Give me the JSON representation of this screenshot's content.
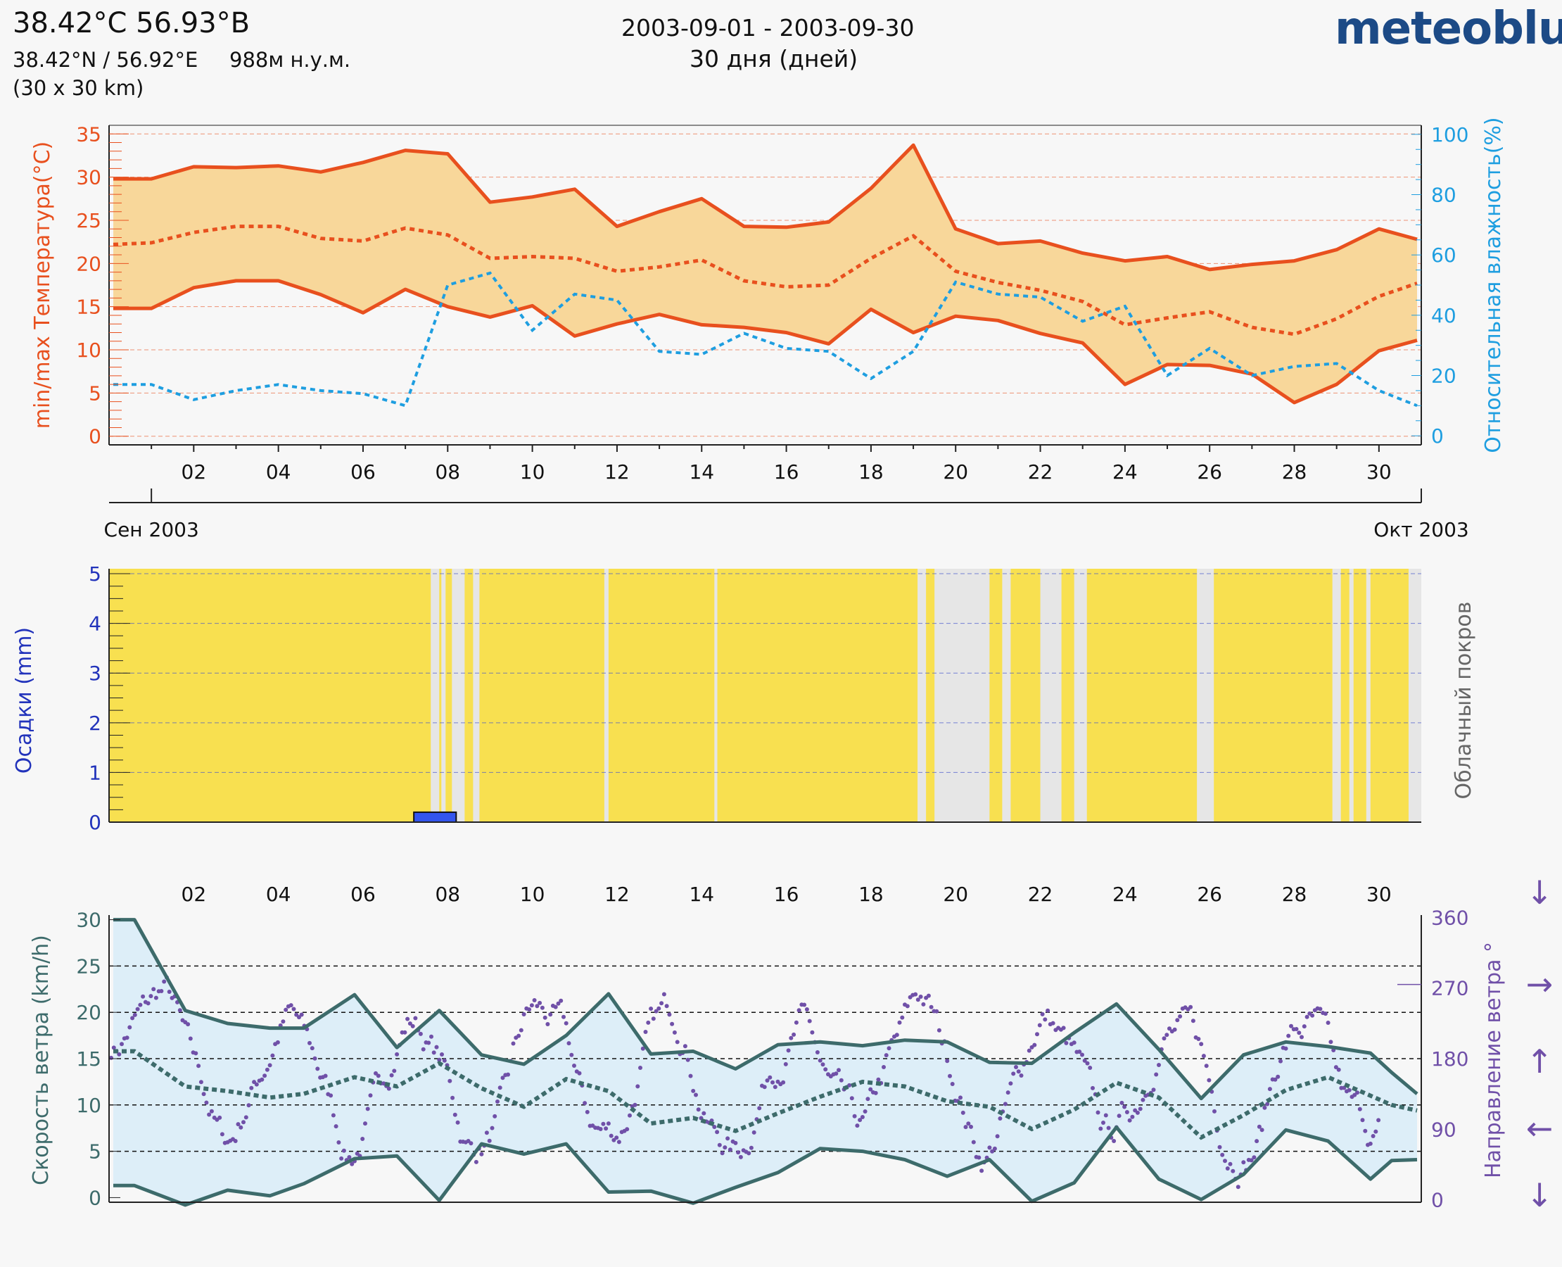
{
  "header": {
    "coords": "38.42°С 56.93°В",
    "subcoords": "38.42°N / 56.92°E",
    "elevation": "988м н.у.м.",
    "grid": "(30 x 30 km)",
    "date_range": "2003-09-01 - 2003-09-30",
    "days": "30 дня (дней)",
    "brand": "meteoblue"
  },
  "colors": {
    "temp": "#e8501e",
    "temp_fill": "#f8d79a",
    "humidity": "#1e9ee0",
    "precip": "#2233bb",
    "precip_bar": "#3355ee",
    "sun": "#f8e050",
    "cloud": "#e6e6e6",
    "wind": "#3d6b6b",
    "wind_fill": "#ddeef8",
    "direction": "#7050a8"
  },
  "chart_data": [
    {
      "type": "line",
      "name": "temperature-humidity",
      "ylabel": "min/max Температура(°C)",
      "y2label": "Относительная влажность(%)",
      "ylim": [
        -1,
        36
      ],
      "y2lim": [
        -3,
        103
      ],
      "xlim": [
        0,
        31
      ],
      "xticks": [
        "02",
        "04",
        "06",
        "08",
        "10",
        "12",
        "14",
        "16",
        "18",
        "20",
        "22",
        "24",
        "26",
        "28",
        "30"
      ],
      "yticks": [
        0,
        5,
        10,
        15,
        20,
        25,
        30,
        35
      ],
      "y2ticks": [
        0,
        20,
        40,
        60,
        80,
        100
      ],
      "month_labels": [
        "Сен 2003",
        "Окт 2003"
      ],
      "x": [
        0.1,
        1,
        2,
        3,
        4,
        5,
        6,
        7,
        8,
        9,
        10,
        11,
        12,
        13,
        14,
        15,
        16,
        17,
        18,
        19,
        20,
        21,
        22,
        23,
        24,
        25,
        26,
        27,
        28,
        29,
        30,
        30.9
      ],
      "series": [
        {
          "role": "max",
          "values": [
            29.8,
            29.8,
            31.2,
            31.1,
            31.3,
            30.6,
            31.7,
            33.1,
            32.7,
            27.1,
            27.7,
            28.6,
            24.3,
            26.0,
            27.5,
            24.3,
            24.2,
            24.8,
            28.7,
            33.7,
            24.0,
            22.3,
            22.6,
            21.2,
            20.3,
            20.8,
            19.3,
            19.9,
            20.3,
            21.6,
            24.0,
            22.8
          ]
        },
        {
          "role": "mean",
          "values": [
            22.2,
            22.4,
            23.6,
            24.3,
            24.3,
            22.9,
            22.6,
            24.1,
            23.3,
            20.6,
            20.8,
            20.6,
            19.1,
            19.6,
            20.4,
            18.0,
            17.3,
            17.5,
            20.6,
            23.2,
            19.1,
            17.8,
            16.9,
            15.6,
            12.9,
            13.7,
            14.4,
            12.6,
            11.8,
            13.6,
            16.2,
            17.7
          ]
        },
        {
          "role": "min",
          "values": [
            14.8,
            14.8,
            17.2,
            18.0,
            18.0,
            16.4,
            14.3,
            17.0,
            15.0,
            13.8,
            15.1,
            11.6,
            13.0,
            14.1,
            12.9,
            12.6,
            12.0,
            10.7,
            14.7,
            12.0,
            13.9,
            13.4,
            11.9,
            10.8,
            6.0,
            8.3,
            8.2,
            7.2,
            3.9,
            6.0,
            9.9,
            11.1
          ]
        },
        {
          "role": "humidity",
          "values": [
            17,
            17,
            12,
            15,
            17,
            15,
            14,
            10,
            50,
            54,
            35,
            47,
            45,
            28,
            27,
            34,
            29,
            28,
            19,
            28,
            51,
            47,
            46,
            38,
            43,
            20,
            29,
            20,
            23,
            24,
            15,
            10
          ]
        }
      ]
    },
    {
      "type": "bar",
      "name": "precipitation-cloud",
      "ylabel": "Осадки (mm)",
      "y2label": "Облачный покров",
      "ylim": [
        0,
        5.1
      ],
      "yticks": [
        0,
        1,
        2,
        3,
        4,
        5
      ],
      "precip_bars": [
        {
          "x0": 7.2,
          "x1": 8.2,
          "value": 0.2
        }
      ],
      "cloud_spans": [
        [
          7.6,
          7.8
        ],
        [
          7.85,
          7.95
        ],
        [
          8.1,
          8.4
        ],
        [
          8.6,
          8.75
        ],
        [
          11.7,
          11.8
        ],
        [
          14.3,
          14.37
        ],
        [
          19.1,
          19.3
        ],
        [
          19.5,
          20.8
        ],
        [
          21.1,
          21.3
        ],
        [
          22.0,
          22.5
        ],
        [
          22.8,
          23.1
        ],
        [
          25.7,
          26.1
        ],
        [
          28.9,
          29.1
        ],
        [
          29.3,
          29.4
        ],
        [
          29.7,
          29.8
        ],
        [
          30.7,
          31.0
        ]
      ]
    },
    {
      "type": "line",
      "name": "wind",
      "ylabel": "Скорость ветра (km/h)",
      "y2label": "Направление ветра °",
      "ylim": [
        -0.5,
        30.5
      ],
      "y2lim": [
        -3,
        363
      ],
      "yticks": [
        0,
        5,
        10,
        15,
        20,
        25,
        30
      ],
      "y2ticks": [
        0,
        90,
        180,
        270,
        360
      ],
      "xticks": [
        "02",
        "04",
        "06",
        "08",
        "10",
        "12",
        "14",
        "16",
        "18",
        "20",
        "22",
        "24",
        "26",
        "28",
        "30"
      ],
      "x": [
        0.1,
        0.6,
        1.8,
        2.8,
        3.8,
        4.6,
        5.8,
        6.8,
        7.8,
        8.8,
        9.8,
        10.8,
        11.8,
        12.8,
        13.8,
        14.8,
        15.8,
        16.8,
        17.8,
        18.8,
        19.8,
        20.8,
        21.8,
        22.8,
        23.8,
        24.8,
        25.8,
        26.8,
        27.8,
        28.8,
        29.8,
        30.3,
        30.9
      ],
      "series": [
        {
          "role": "max",
          "values": [
            30,
            30,
            20.2,
            18.8,
            18.3,
            18.3,
            21.9,
            16.2,
            20.2,
            15.4,
            14.4,
            17.5,
            22.0,
            15.5,
            15.8,
            13.9,
            16.5,
            16.8,
            16.4,
            17.0,
            16.8,
            14.6,
            14.5,
            17.8,
            20.9,
            16.0,
            10.7,
            15.4,
            16.8,
            16.3,
            15.6,
            13.5,
            11.2
          ]
        },
        {
          "role": "mean",
          "values": [
            15.8,
            15.8,
            12.0,
            11.5,
            10.8,
            11.2,
            13.0,
            12.0,
            14.5,
            11.8,
            9.8,
            12.8,
            11.5,
            8.0,
            8.6,
            7.2,
            9.1,
            10.9,
            12.5,
            12.0,
            10.4,
            9.8,
            7.4,
            9.5,
            12.4,
            10.8,
            6.5,
            8.9,
            11.6,
            13.0,
            11.0,
            10.0,
            9.4
          ]
        },
        {
          "role": "min",
          "values": [
            1.3,
            1.3,
            -0.8,
            0.8,
            0.2,
            1.5,
            4.2,
            4.5,
            -0.3,
            5.8,
            4.7,
            5.8,
            0.6,
            0.7,
            -0.6,
            1.1,
            2.7,
            5.3,
            5.0,
            4.1,
            2.3,
            4.1,
            -0.4,
            1.6,
            7.6,
            2.0,
            -0.2,
            2.5,
            7.3,
            6.1,
            2.0,
            4.0,
            4.1
          ]
        }
      ],
      "direction_arrows": [
        "↓",
        "→",
        "↑",
        "←",
        "↓"
      ]
    }
  ]
}
